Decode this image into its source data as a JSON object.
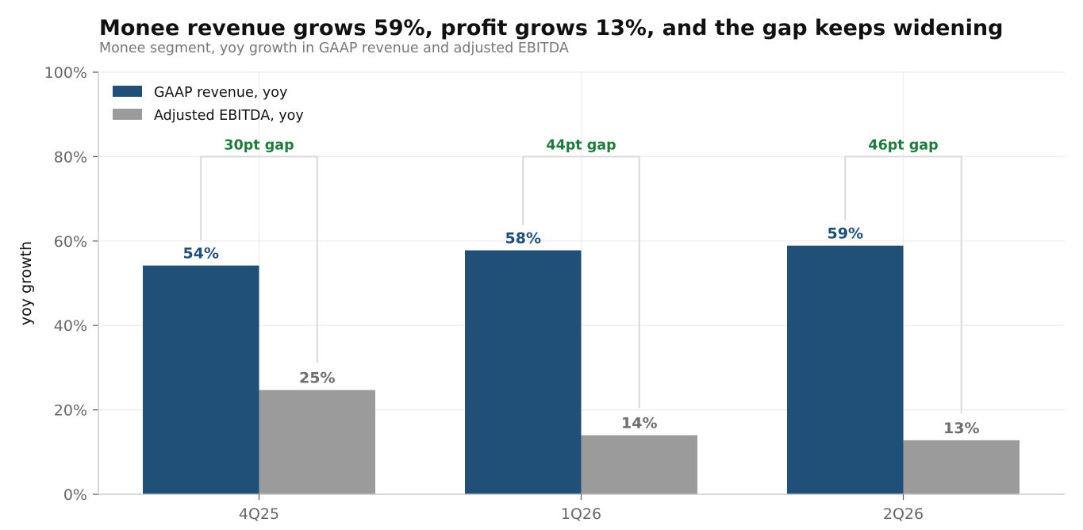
{
  "chart_data": {
    "type": "bar",
    "title": "Monee revenue grows 59%, profit grows 13%, and the gap keeps widening",
    "subtitle": "Monee segment, yoy growth in GAAP revenue and adjusted EBITDA",
    "xlabel": "",
    "ylabel": "yoy growth",
    "ylim": [
      0,
      100
    ],
    "yticks": [
      0,
      20,
      40,
      60,
      80,
      100
    ],
    "ytick_labels": [
      "0%",
      "20%",
      "40%",
      "60%",
      "80%",
      "100%"
    ],
    "categories": [
      "4Q25",
      "1Q26",
      "2Q26"
    ],
    "series": [
      {
        "name": "GAAP revenue, yoy",
        "values": [
          54.2,
          57.8,
          58.9
        ],
        "labels": [
          "54%",
          "58%",
          "59%"
        ],
        "color": "#204f78",
        "label_color": "#204f78"
      },
      {
        "name": "Adjusted EBITDA, yoy",
        "values": [
          24.7,
          14.0,
          12.8
        ],
        "labels": [
          "25%",
          "14%",
          "13%"
        ],
        "color": "#9b9b9b",
        "label_color": "#6e6e6e"
      }
    ],
    "gap_annotations": {
      "labels": [
        "30pt gap",
        "44pt gap",
        "46pt gap"
      ],
      "level": 80,
      "color": "#1f7a3d"
    },
    "grid": true,
    "legend_position": "top-left"
  }
}
